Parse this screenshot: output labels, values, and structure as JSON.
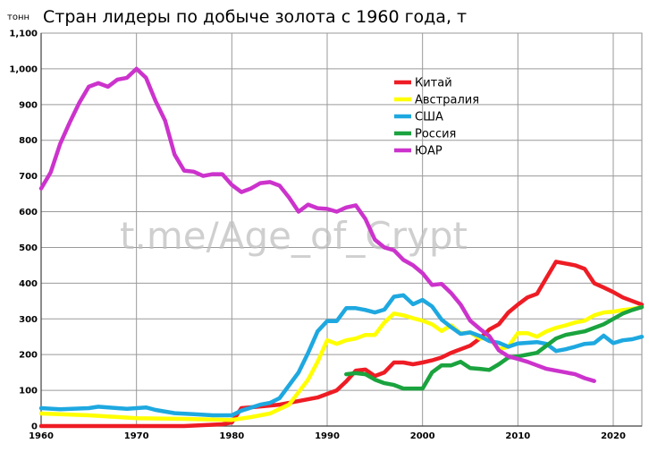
{
  "title": "Стран лидеры по добыче золота с 1960 года, т",
  "unit_label": "тонн",
  "watermark": "t.me/Age_of_Crypt",
  "colors": {
    "Китай": "#ee1c24",
    "Австралия": "#ffff00",
    "США": "#1ea8e0",
    "Россия": "#1aa33e",
    "ЮАР": "#cc33cc"
  },
  "chart_data": {
    "type": "line",
    "title": "Стран лидеры по добыче золота с 1960 года, т",
    "ylabel": "тонн",
    "xlabel": "",
    "xlim": [
      1960,
      2023
    ],
    "ylim": [
      0,
      1100
    ],
    "grid": true,
    "legend_position": "top-right",
    "x_ticks": [
      1960,
      1970,
      1980,
      1990,
      2000,
      2010,
      2020
    ],
    "y_ticks": [
      0,
      100,
      200,
      300,
      400,
      500,
      600,
      700,
      800,
      900,
      1000,
      1100
    ],
    "y_tick_labels": [
      "0",
      "100",
      "200",
      "300",
      "400",
      "500",
      "600",
      "700",
      "800",
      "900",
      "1,000",
      "1,100"
    ],
    "series": [
      {
        "name": "Китай",
        "color": "#ee1c24",
        "x": [
          1960,
          1970,
          1975,
          1979,
          1980,
          1981,
          1983,
          1985,
          1987,
          1989,
          1991,
          1992,
          1993,
          1994,
          1995,
          1996,
          1997,
          1998,
          1999,
          2000,
          2001,
          2002,
          2003,
          2004,
          2005,
          2006,
          2007,
          2008,
          2009,
          2010,
          2011,
          2012,
          2013,
          2014,
          2015,
          2016,
          2017,
          2018,
          2019,
          2020,
          2021,
          2022,
          2023
        ],
        "y": [
          0,
          0,
          0,
          5,
          10,
          50,
          55,
          60,
          70,
          80,
          100,
          125,
          155,
          158,
          140,
          150,
          178,
          178,
          173,
          178,
          184,
          192,
          205,
          215,
          225,
          245,
          270,
          285,
          318,
          340,
          360,
          370,
          415,
          460,
          455,
          450,
          440,
          400,
          388,
          375,
          360,
          350,
          340
        ]
      },
      {
        "name": "Австралия",
        "color": "#ffff00",
        "x": [
          1960,
          1965,
          1970,
          1975,
          1980,
          1982,
          1984,
          1986,
          1988,
          1989,
          1990,
          1991,
          1992,
          1993,
          1994,
          1995,
          1996,
          1997,
          1998,
          1999,
          2000,
          2001,
          2002,
          2003,
          2004,
          2005,
          2006,
          2007,
          2008,
          2009,
          2010,
          2011,
          2012,
          2013,
          2014,
          2015,
          2016,
          2017,
          2018,
          2019,
          2020,
          2021,
          2022,
          2023
        ],
        "y": [
          35,
          30,
          22,
          20,
          17,
          25,
          35,
          60,
          130,
          180,
          240,
          230,
          240,
          245,
          255,
          255,
          290,
          315,
          310,
          302,
          295,
          285,
          266,
          282,
          259,
          262,
          245,
          247,
          215,
          222,
          260,
          260,
          250,
          265,
          275,
          282,
          290,
          295,
          310,
          318,
          320,
          325,
          328,
          333
        ]
      },
      {
        "name": "США",
        "color": "#1ea8e0",
        "x": [
          1960,
          1962,
          1965,
          1966,
          1968,
          1969,
          1971,
          1972,
          1974,
          1976,
          1978,
          1980,
          1981,
          1983,
          1984,
          1985,
          1987,
          1988,
          1989,
          1990,
          1991,
          1992,
          1993,
          1994,
          1995,
          1996,
          1997,
          1998,
          1999,
          2000,
          2001,
          2002,
          2003,
          2004,
          2005,
          2006,
          2007,
          2008,
          2009,
          2010,
          2011,
          2012,
          2013,
          2014,
          2015,
          2016,
          2017,
          2018,
          2019,
          2020,
          2021,
          2022,
          2023
        ],
        "y": [
          50,
          47,
          50,
          54,
          50,
          48,
          52,
          45,
          36,
          33,
          30,
          30,
          43,
          60,
          65,
          78,
          150,
          205,
          265,
          294,
          294,
          330,
          330,
          325,
          318,
          326,
          362,
          366,
          341,
          353,
          335,
          298,
          277,
          258,
          262,
          252,
          238,
          233,
          222,
          231,
          233,
          235,
          230,
          210,
          215,
          222,
          230,
          232,
          253,
          232,
          240,
          243,
          250
        ]
      },
      {
        "name": "Россия",
        "color": "#1aa33e",
        "x": [
          1992,
          1993,
          1994,
          1995,
          1996,
          1997,
          1998,
          1999,
          2000,
          2001,
          2002,
          2003,
          2004,
          2005,
          2006,
          2007,
          2008,
          2009,
          2010,
          2011,
          2012,
          2013,
          2014,
          2015,
          2016,
          2017,
          2018,
          2019,
          2020,
          2021,
          2022,
          2023
        ],
        "y": [
          145,
          148,
          145,
          130,
          120,
          115,
          105,
          105,
          105,
          150,
          170,
          170,
          180,
          162,
          160,
          157,
          173,
          192,
          195,
          200,
          205,
          225,
          245,
          255,
          260,
          265,
          275,
          285,
          300,
          315,
          325,
          333
        ]
      },
      {
        "name": "ЮАР",
        "color": "#cc33cc",
        "x": [
          1960,
          1961,
          1962,
          1963,
          1964,
          1965,
          1966,
          1967,
          1968,
          1969,
          1970,
          1971,
          1972,
          1973,
          1974,
          1975,
          1976,
          1977,
          1978,
          1979,
          1980,
          1981,
          1982,
          1983,
          1984,
          1985,
          1986,
          1987,
          1988,
          1989,
          1990,
          1991,
          1992,
          1993,
          1994,
          1995,
          1996,
          1997,
          1998,
          1999,
          2000,
          2001,
          2002,
          2003,
          2004,
          2005,
          2006,
          2007,
          2008,
          2009,
          2010,
          2011,
          2012,
          2013,
          2014,
          2015,
          2016,
          2017,
          2018
        ],
        "y": [
          665,
          710,
          790,
          850,
          905,
          950,
          960,
          950,
          970,
          975,
          1000,
          975,
          910,
          855,
          760,
          715,
          712,
          700,
          705,
          705,
          675,
          655,
          665,
          680,
          683,
          673,
          640,
          600,
          620,
          610,
          608,
          600,
          612,
          618,
          580,
          522,
          500,
          492,
          465,
          450,
          428,
          395,
          398,
          372,
          340,
          295,
          272,
          252,
          212,
          195,
          188,
          180,
          170,
          160,
          155,
          150,
          145,
          134,
          126
        ]
      }
    ]
  }
}
